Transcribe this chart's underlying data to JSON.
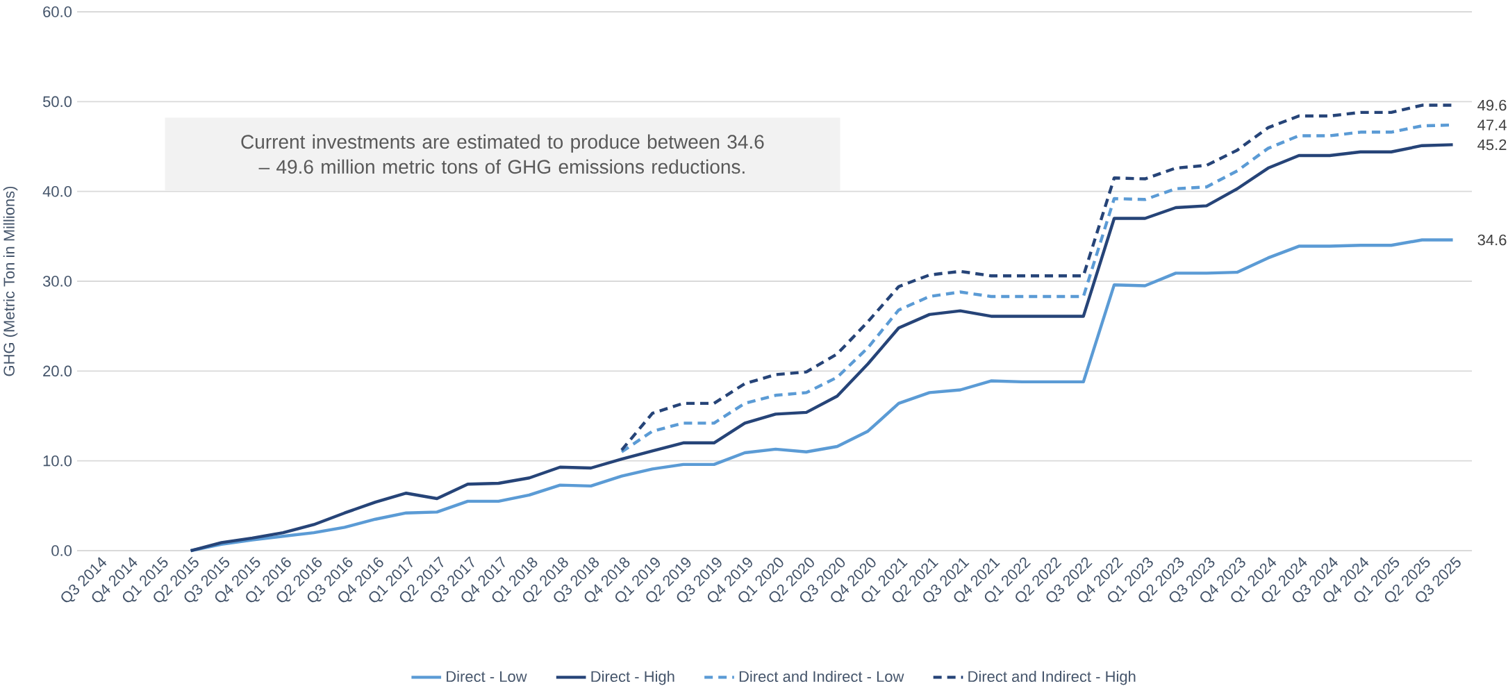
{
  "chart_data": {
    "type": "line",
    "ylabel": "GHG (Metric Ton in Millions)",
    "categories": [
      "Q3 2014",
      "Q4 2014",
      "Q1 2015",
      "Q2 2015",
      "Q3 2015",
      "Q4 2015",
      "Q1 2016",
      "Q2 2016",
      "Q3 2016",
      "Q4 2016",
      "Q1 2017",
      "Q2 2017",
      "Q3 2017",
      "Q4 2017",
      "Q1 2018",
      "Q2 2018",
      "Q3 2018",
      "Q4 2018",
      "Q1 2019",
      "Q2 2019",
      "Q3 2019",
      "Q4 2019",
      "Q1 2020",
      "Q2 2020",
      "Q3 2020",
      "Q4 2020",
      "Q1 2021",
      "Q2 2021",
      "Q3 2021",
      "Q4 2021",
      "Q1 2022",
      "Q2 2022",
      "Q3 2022",
      "Q4 2022",
      "Q1 2023",
      "Q2 2023",
      "Q3 2023",
      "Q4 2023",
      "Q1 2024",
      "Q2 2024",
      "Q3 2024",
      "Q4 2024",
      "Q1 2025",
      "Q2 2025",
      "Q3 2025"
    ],
    "ylim": [
      0,
      60
    ],
    "yticks": [
      {
        "value": 0,
        "label": "0.0"
      },
      {
        "value": 10,
        "label": "10.0"
      },
      {
        "value": 20,
        "label": "20.0"
      },
      {
        "value": 30,
        "label": "30.0"
      },
      {
        "value": 40,
        "label": "40.0"
      },
      {
        "value": 50,
        "label": "50.0"
      },
      {
        "value": 60,
        "label": "60.0"
      }
    ],
    "grid": "y",
    "legend": "bottom",
    "annotations": [
      "Current investments are estimated to produce between 34.6 – 49.6 million metric tons of GHG emissions reductions."
    ],
    "series": [
      {
        "name": "Direct - Low",
        "color": "#5b9bd5",
        "line_style": "solid",
        "values": [
          null,
          null,
          null,
          0,
          0.7,
          1.2,
          1.6,
          2.0,
          2.6,
          3.5,
          4.2,
          4.3,
          5.5,
          5.5,
          6.2,
          7.3,
          7.2,
          8.3,
          9.1,
          9.6,
          9.6,
          10.9,
          11.3,
          11.0,
          11.6,
          13.3,
          16.4,
          17.6,
          17.9,
          18.9,
          18.8,
          18.8,
          18.8,
          29.6,
          29.5,
          30.9,
          30.9,
          31.0,
          32.6,
          33.9,
          33.9,
          34.0,
          34.0,
          34.6,
          34.6
        ],
        "value_labels": [
          null,
          null,
          null,
          null,
          null,
          null,
          null,
          null,
          null,
          null,
          null,
          null,
          null,
          null,
          null,
          null,
          null,
          null,
          null,
          null,
          null,
          null,
          null,
          null,
          null,
          null,
          null,
          null,
          null,
          null,
          null,
          null,
          null,
          null,
          null,
          null,
          null,
          null,
          null,
          null,
          null,
          null,
          null,
          null,
          "34.6"
        ]
      },
      {
        "name": "Direct - High",
        "color": "#264478",
        "line_style": "solid",
        "values": [
          null,
          null,
          null,
          0,
          0.9,
          1.4,
          2.0,
          2.9,
          4.2,
          5.4,
          6.4,
          5.8,
          7.4,
          7.5,
          8.1,
          9.3,
          9.2,
          10.2,
          11.1,
          12.0,
          12.0,
          14.2,
          15.2,
          15.4,
          17.2,
          20.8,
          24.8,
          26.3,
          26.7,
          26.1,
          26.1,
          26.1,
          26.1,
          37.0,
          37.0,
          38.2,
          38.4,
          40.3,
          42.6,
          44.0,
          44.0,
          44.4,
          44.4,
          45.1,
          45.2
        ],
        "value_labels": [
          null,
          null,
          null,
          null,
          null,
          null,
          null,
          null,
          null,
          null,
          null,
          null,
          null,
          null,
          null,
          null,
          null,
          null,
          null,
          null,
          null,
          null,
          null,
          null,
          null,
          null,
          null,
          null,
          null,
          null,
          null,
          null,
          null,
          null,
          null,
          null,
          null,
          null,
          null,
          null,
          null,
          null,
          null,
          null,
          "45.2"
        ]
      },
      {
        "name": "Direct and Indirect - Low",
        "color": "#5b9bd5",
        "line_style": "dashed",
        "values": [
          null,
          null,
          null,
          null,
          null,
          null,
          null,
          null,
          null,
          null,
          null,
          null,
          null,
          null,
          null,
          null,
          null,
          11.0,
          13.3,
          14.2,
          14.2,
          16.4,
          17.3,
          17.6,
          19.3,
          22.6,
          26.8,
          28.3,
          28.8,
          28.3,
          28.3,
          28.3,
          28.3,
          39.2,
          39.1,
          40.3,
          40.5,
          42.3,
          44.8,
          46.2,
          46.2,
          46.6,
          46.6,
          47.3,
          47.4
        ],
        "value_labels": [
          null,
          null,
          null,
          null,
          null,
          null,
          null,
          null,
          null,
          null,
          null,
          null,
          null,
          null,
          null,
          null,
          null,
          null,
          null,
          null,
          null,
          null,
          null,
          null,
          null,
          null,
          null,
          null,
          null,
          null,
          null,
          null,
          null,
          null,
          null,
          null,
          null,
          null,
          null,
          null,
          null,
          null,
          null,
          null,
          "47.4"
        ]
      },
      {
        "name": "Direct and Indirect - High",
        "color": "#264478",
        "line_style": "dashed",
        "values": [
          null,
          null,
          null,
          null,
          null,
          null,
          null,
          null,
          null,
          null,
          null,
          null,
          null,
          null,
          null,
          null,
          null,
          11.2,
          15.3,
          16.4,
          16.4,
          18.6,
          19.6,
          19.9,
          21.9,
          25.5,
          29.4,
          30.7,
          31.1,
          30.6,
          30.6,
          30.6,
          30.6,
          41.5,
          41.4,
          42.6,
          42.9,
          44.6,
          47.1,
          48.4,
          48.4,
          48.8,
          48.8,
          49.6,
          49.6
        ],
        "value_labels": [
          null,
          null,
          null,
          null,
          null,
          null,
          null,
          null,
          null,
          null,
          null,
          null,
          null,
          null,
          null,
          null,
          null,
          null,
          null,
          null,
          null,
          null,
          null,
          null,
          null,
          null,
          null,
          null,
          null,
          null,
          null,
          null,
          null,
          null,
          null,
          null,
          null,
          null,
          null,
          null,
          null,
          null,
          null,
          null,
          "49.6"
        ]
      }
    ]
  }
}
